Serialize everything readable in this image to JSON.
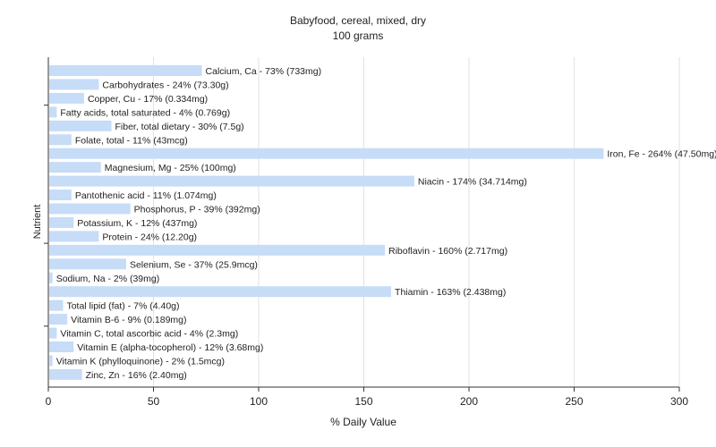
{
  "chart_data": {
    "type": "bar",
    "orientation": "horizontal",
    "title": "Babyfood, cereal, mixed, dry",
    "subtitle": "100 grams",
    "xlabel": "% Daily Value",
    "ylabel": "Nutrient",
    "xlim": [
      0,
      300
    ],
    "xticks": [
      0,
      50,
      100,
      150,
      200,
      250,
      300
    ],
    "grid": true,
    "bar_color": "#c6dcf7",
    "categories": [
      "Calcium, Ca",
      "Carbohydrates",
      "Copper, Cu",
      "Fatty acids, total saturated",
      "Fiber, total dietary",
      "Folate, total",
      "Iron, Fe",
      "Magnesium, Mg",
      "Niacin",
      "Pantothenic acid",
      "Phosphorus, P",
      "Potassium, K",
      "Protein",
      "Riboflavin",
      "Selenium, Se",
      "Sodium, Na",
      "Thiamin",
      "Total lipid (fat)",
      "Vitamin B-6",
      "Vitamin C, total ascorbic acid",
      "Vitamin E (alpha-tocopherol)",
      "Vitamin K (phylloquinone)",
      "Zinc, Zn"
    ],
    "values": [
      73,
      24,
      17,
      4,
      30,
      11,
      264,
      25,
      174,
      11,
      39,
      12,
      24,
      160,
      37,
      2,
      163,
      7,
      9,
      4,
      12,
      2,
      16
    ],
    "labels": [
      "Calcium, Ca - 73% (733mg)",
      "Carbohydrates - 24% (73.30g)",
      "Copper, Cu - 17% (0.334mg)",
      "Fatty acids, total saturated - 4% (0.769g)",
      "Fiber, total dietary - 30% (7.5g)",
      "Folate, total - 11% (43mcg)",
      "Iron, Fe - 264% (47.50mg)",
      "Magnesium, Mg - 25% (100mg)",
      "Niacin - 174% (34.714mg)",
      "Pantothenic acid - 11% (1.074mg)",
      "Phosphorus, P - 39% (392mg)",
      "Potassium, K - 12% (437mg)",
      "Protein - 24% (12.20g)",
      "Riboflavin - 160% (2.717mg)",
      "Selenium, Se - 37% (25.9mcg)",
      "Sodium, Na - 2% (39mg)",
      "Thiamin - 163% (2.438mg)",
      "Total lipid (fat) - 7% (4.40g)",
      "Vitamin B-6 - 9% (0.189mg)",
      "Vitamin C, total ascorbic acid - 4% (2.3mg)",
      "Vitamin E (alpha-tocopherol) - 12% (3.68mg)",
      "Vitamin K (phylloquinone) - 2% (1.5mcg)",
      "Zinc, Zn - 16% (2.40mg)"
    ]
  }
}
